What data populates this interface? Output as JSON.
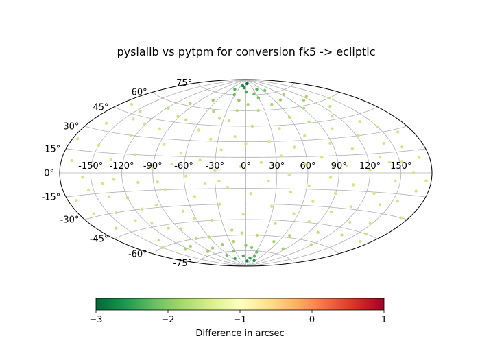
{
  "chart_data": {
    "type": "scatter",
    "projection": "aitoff",
    "title": "pyslalib vs pytpm for conversion fk5 -> ecliptic",
    "xlabel": "",
    "ylabel": "",
    "grid": true,
    "xlim": [
      -180,
      180
    ],
    "ylim": [
      -90,
      90
    ],
    "lon_ticks": [
      -150,
      -120,
      -90,
      -60,
      -30,
      0,
      30,
      60,
      90,
      120,
      150
    ],
    "lon_tick_labels": [
      "-150°",
      "-120°",
      "-90°",
      "-60°",
      "-30°",
      "0°",
      "30°",
      "60°",
      "90°",
      "120°",
      "150°"
    ],
    "lat_ticks": [
      -75,
      -60,
      -45,
      -30,
      -15,
      0,
      15,
      30,
      45,
      60,
      75
    ],
    "lat_tick_labels": [
      "-75°",
      "-60°",
      "-45°",
      "-30°",
      "-15°",
      "0°",
      "15°",
      "30°",
      "45°",
      "60°",
      "75°"
    ],
    "colorbar": {
      "label": "Difference in arcsec",
      "colormap": "RdYlGn_r",
      "range": [
        -3,
        1
      ],
      "ticks": [
        -3,
        -2,
        -1,
        0,
        1
      ],
      "tick_labels": [
        "−3",
        "−2",
        "−1",
        "0",
        "1"
      ],
      "stops": [
        "#006837",
        "#1a9850",
        "#66bd63",
        "#a6d96a",
        "#d9ef8b",
        "#ffffbf",
        "#fee08b",
        "#fdae61",
        "#f46d43",
        "#d73027",
        "#a50026"
      ]
    },
    "series": [
      {
        "points": [
          [
            -160,
            -40,
            -1.6
          ],
          [
            -155,
            -12,
            -1.5
          ],
          [
            -150,
            20,
            -1.5
          ],
          [
            -148,
            5,
            -1.6
          ],
          [
            -142,
            -30,
            -1.5
          ],
          [
            -140,
            42,
            -1.5
          ],
          [
            -135,
            -55,
            -1.6
          ],
          [
            -132,
            10,
            -1.5
          ],
          [
            -128,
            -5,
            -1.5
          ],
          [
            -125,
            30,
            -1.5
          ],
          [
            -120,
            -20,
            -1.6
          ],
          [
            -118,
            55,
            -1.7
          ],
          [
            -115,
            -42,
            -1.5
          ],
          [
            -110,
            15,
            -1.5
          ],
          [
            -108,
            -65,
            -1.8
          ],
          [
            -105,
            -8,
            -1.5
          ],
          [
            -100,
            38,
            -1.5
          ],
          [
            -98,
            62,
            -1.8
          ],
          [
            -95,
            -28,
            -1.5
          ],
          [
            -90,
            4,
            -1.5
          ],
          [
            -88,
            -50,
            -1.6
          ],
          [
            -85,
            25,
            -1.5
          ],
          [
            -80,
            -15,
            -1.5
          ],
          [
            -78,
            48,
            -1.6
          ],
          [
            -75,
            -70,
            -1.9
          ],
          [
            -72,
            8,
            -1.5
          ],
          [
            -70,
            -35,
            -1.5
          ],
          [
            -68,
            68,
            -1.9
          ],
          [
            -65,
            18,
            -1.5
          ],
          [
            -60,
            -60,
            -1.7
          ],
          [
            -58,
            -3,
            -1.5
          ],
          [
            -55,
            40,
            -1.5
          ],
          [
            -52,
            -22,
            -1.5
          ],
          [
            -50,
            58,
            -1.7
          ],
          [
            -45,
            12,
            -1.5
          ],
          [
            -42,
            -45,
            -1.6
          ],
          [
            -40,
            -10,
            -1.5
          ],
          [
            -38,
            32,
            -1.5
          ],
          [
            -35,
            -75,
            -2.1
          ],
          [
            -32,
            75,
            -2.2
          ],
          [
            -30,
            2,
            -1.5
          ],
          [
            -28,
            -30,
            -1.5
          ],
          [
            -25,
            22,
            -1.5
          ],
          [
            -22,
            50,
            -1.6
          ],
          [
            -20,
            -55,
            -1.7
          ],
          [
            -18,
            -14,
            -1.5
          ],
          [
            -15,
            70,
            -2.0
          ],
          [
            -12,
            35,
            -1.5
          ],
          [
            -10,
            -80,
            -2.4
          ],
          [
            -8,
            82,
            -2.6
          ],
          [
            -5,
            6,
            -1.5
          ],
          [
            -3,
            -40,
            -1.5
          ],
          [
            0,
            28,
            -1.5
          ],
          [
            0,
            -70,
            -2.0
          ],
          [
            2,
            78,
            -2.4
          ],
          [
            5,
            -20,
            -1.5
          ],
          [
            8,
            45,
            -1.6
          ],
          [
            10,
            -85,
            -2.8
          ],
          [
            12,
            86,
            -2.9
          ],
          [
            15,
            10,
            -1.5
          ],
          [
            18,
            -60,
            -1.7
          ],
          [
            20,
            60,
            -1.7
          ],
          [
            22,
            -8,
            -1.5
          ],
          [
            25,
            30,
            -1.5
          ],
          [
            28,
            -32,
            -1.5
          ],
          [
            30,
            72,
            -2.1
          ],
          [
            32,
            -76,
            -2.2
          ],
          [
            35,
            16,
            -1.5
          ],
          [
            38,
            -48,
            -1.6
          ],
          [
            40,
            42,
            -1.5
          ],
          [
            42,
            -2,
            -1.5
          ],
          [
            45,
            -18,
            -1.5
          ],
          [
            48,
            65,
            -1.8
          ],
          [
            50,
            24,
            -1.5
          ],
          [
            52,
            -65,
            -1.8
          ],
          [
            55,
            -38,
            -1.5
          ],
          [
            58,
            8,
            -1.5
          ],
          [
            60,
            52,
            -1.6
          ],
          [
            62,
            -12,
            -1.5
          ],
          [
            65,
            34,
            -1.5
          ],
          [
            68,
            -58,
            -1.7
          ],
          [
            70,
            -26,
            -1.5
          ],
          [
            72,
            68,
            -1.9
          ],
          [
            75,
            14,
            -1.5
          ],
          [
            78,
            -44,
            -1.5
          ],
          [
            80,
            46,
            -1.6
          ],
          [
            82,
            -4,
            -1.5
          ],
          [
            85,
            -70,
            -1.9
          ],
          [
            88,
            26,
            -1.5
          ],
          [
            90,
            -18,
            -1.5
          ],
          [
            92,
            58,
            -1.7
          ],
          [
            95,
            -34,
            -1.5
          ],
          [
            98,
            6,
            -1.5
          ],
          [
            100,
            38,
            -1.5
          ],
          [
            102,
            -52,
            -1.6
          ],
          [
            105,
            -10,
            -1.5
          ],
          [
            108,
            20,
            -1.5
          ],
          [
            110,
            64,
            -1.8
          ],
          [
            112,
            -28,
            -1.5
          ],
          [
            115,
            48,
            -1.6
          ],
          [
            118,
            -62,
            -1.7
          ],
          [
            120,
            2,
            -1.5
          ],
          [
            122,
            30,
            -1.5
          ],
          [
            125,
            -40,
            -1.5
          ],
          [
            128,
            -16,
            -1.5
          ],
          [
            130,
            55,
            -1.6
          ],
          [
            132,
            12,
            -1.5
          ],
          [
            135,
            -50,
            -1.6
          ],
          [
            138,
            40,
            -1.5
          ],
          [
            140,
            -24,
            -1.5
          ],
          [
            142,
            22,
            -1.5
          ],
          [
            145,
            -6,
            -1.5
          ],
          [
            148,
            -38,
            -1.5
          ],
          [
            150,
            34,
            -1.5
          ],
          [
            152,
            8,
            -1.5
          ],
          [
            155,
            -20,
            -1.5
          ],
          [
            158,
            18,
            -1.5
          ],
          [
            160,
            -45,
            -1.5
          ],
          [
            162,
            0,
            -1.5
          ],
          [
            165,
            28,
            -1.5
          ],
          [
            168,
            -12,
            -1.5
          ],
          [
            170,
            10,
            -1.5
          ],
          [
            172,
            -30,
            -1.5
          ],
          [
            175,
            -5,
            -1.5
          ],
          [
            -170,
            8,
            -1.5
          ],
          [
            -172,
            -18,
            -1.5
          ],
          [
            -175,
            22,
            -1.5
          ],
          [
            -165,
            -28,
            -1.5
          ],
          [
            -162,
            35,
            -1.5
          ],
          [
            -158,
            -3,
            -1.5
          ],
          [
            -145,
            48,
            -1.6
          ],
          [
            -138,
            -18,
            -1.5
          ],
          [
            -130,
            -38,
            -1.5
          ],
          [
            -122,
            40,
            -1.5
          ],
          [
            -112,
            -30,
            -1.5
          ],
          [
            -102,
            -48,
            -1.5
          ],
          [
            -92,
            50,
            -1.6
          ],
          [
            -82,
            -60,
            -1.7
          ],
          [
            -62,
            -42,
            -1.5
          ],
          [
            -48,
            -68,
            -1.9
          ],
          [
            -36,
            52,
            -1.6
          ],
          [
            -24,
            -66,
            -1.8
          ],
          [
            -14,
            60,
            -1.7
          ],
          [
            -6,
            -58,
            -1.7
          ],
          [
            4,
            66,
            -1.8
          ],
          [
            14,
            -72,
            -2.0
          ],
          [
            24,
            76,
            -2.2
          ],
          [
            34,
            -80,
            -2.3
          ],
          [
            44,
            80,
            -2.3
          ],
          [
            -44,
            80,
            -2.3
          ],
          [
            -54,
            -82,
            -2.5
          ],
          [
            54,
            -84,
            -2.6
          ],
          [
            -20,
            84,
            -2.7
          ],
          [
            20,
            -82,
            -2.5
          ],
          [
            66,
            78,
            -2.1
          ],
          [
            -66,
            -78,
            -2.1
          ],
          [
            96,
            72,
            -1.9
          ],
          [
            -96,
            -72,
            -1.9
          ],
          [
            126,
            66,
            -1.8
          ],
          [
            -126,
            -66,
            -1.8
          ],
          [
            -150,
            -60,
            -1.6
          ],
          [
            150,
            60,
            -1.6
          ],
          [
            -168,
            50,
            -1.5
          ],
          [
            168,
            -50,
            -1.5
          ],
          [
            -140,
            -8,
            -1.5
          ],
          [
            140,
            8,
            -1.5
          ],
          [
            -86,
            -8,
            -1.5
          ],
          [
            86,
            8,
            -1.5
          ],
          [
            -26,
            -8,
            -1.5
          ],
          [
            26,
            8,
            -1.5
          ]
        ]
      }
    ]
  }
}
